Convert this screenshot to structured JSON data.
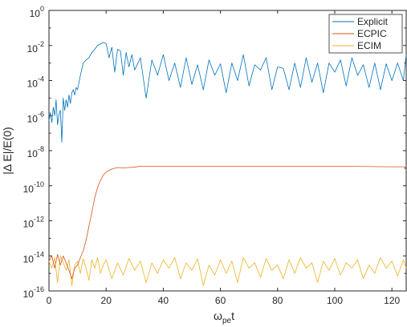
{
  "chart_data": {
    "type": "line",
    "xlabel": "ω_pe t",
    "xlabel_main": "ω",
    "xlabel_sub": "pe",
    "xlabel_tail": "t",
    "ylabel": "|Δ E|/E(0)",
    "xlim": [
      0,
      125
    ],
    "ylim": [
      1e-16,
      1
    ],
    "yscale": "log",
    "grid": false,
    "legend_position": "top-right",
    "x_ticks": [
      "0",
      "20",
      "40",
      "60",
      "80",
      "100",
      "120"
    ],
    "y_ticks": [
      {
        "mantissa": "10",
        "exp": "-16"
      },
      {
        "mantissa": "10",
        "exp": "-14"
      },
      {
        "mantissa": "10",
        "exp": "-12"
      },
      {
        "mantissa": "10",
        "exp": "-10"
      },
      {
        "mantissa": "10",
        "exp": "-8"
      },
      {
        "mantissa": "10",
        "exp": "-6"
      },
      {
        "mantissa": "10",
        "exp": "-4"
      },
      {
        "mantissa": "10",
        "exp": "-2"
      },
      {
        "mantissa": "10",
        "exp": "0"
      }
    ],
    "series": [
      {
        "name": "Explicit",
        "color": "#0072BD",
        "x": [
          0,
          0.5,
          1,
          1.5,
          2,
          2.5,
          3,
          3.5,
          4,
          4.5,
          5,
          5.5,
          6,
          6.5,
          7,
          7.5,
          8,
          8.5,
          9,
          9.5,
          10,
          11,
          12,
          13,
          14,
          15,
          16,
          17,
          18,
          19,
          20,
          21,
          22,
          23,
          24,
          25,
          26,
          27,
          28,
          29,
          30,
          32,
          34,
          36,
          38,
          40,
          42,
          44,
          46,
          48,
          50,
          52,
          54,
          56,
          58,
          60,
          62,
          64,
          66,
          68,
          70,
          72,
          74,
          76,
          78,
          80,
          82,
          84,
          86,
          88,
          90,
          92,
          94,
          96,
          98,
          100,
          102,
          104,
          106,
          108,
          110,
          112,
          114,
          116,
          118,
          120,
          122,
          124,
          125
        ],
        "y": [
          5e-07,
          1.5e-06,
          4e-07,
          3e-06,
          1e-06,
          8e-06,
          3e-07,
          1.2e-06,
          2e-06,
          3e-08,
          1e-05,
          2e-06,
          8e-06,
          3e-06,
          1.5e-05,
          5e-06,
          2e-05,
          3e-05,
          1.5e-05,
          4e-05,
          3e-05,
          0.0002,
          0.001,
          0.0015,
          0.002,
          0.004,
          0.006,
          0.01,
          0.012,
          0.015,
          0.013,
          0.002,
          0.008,
          0.0003,
          0.006,
          0.005,
          0.0002,
          0.004,
          0.0006,
          0.003,
          0.0004,
          0.002,
          1e-05,
          0.0015,
          0.0002,
          0.003,
          0.0001,
          0.001,
          4e-05,
          0.002,
          6e-05,
          0.0008,
          3e-05,
          0.0015,
          0.0002,
          0.0009,
          2e-05,
          0.001,
          0.0001,
          0.003,
          5e-05,
          0.0008,
          0.0004,
          0.002,
          3e-05,
          0.0006,
          0.0005,
          3e-05,
          0.001,
          4e-05,
          0.002,
          8e-05,
          0.001,
          2e-05,
          0.001,
          0.0003,
          0.0015,
          5e-05,
          0.002,
          0.0002,
          0.0008,
          4e-05,
          0.001,
          3e-05,
          0.0009,
          0.0001,
          0.001,
          0.0001,
          0.003
        ]
      },
      {
        "name": "ECPIC",
        "color": "#D95319",
        "x": [
          0,
          1,
          2,
          3,
          4,
          5,
          6,
          7,
          8,
          9,
          10,
          11,
          12,
          13,
          14,
          15,
          16,
          17,
          18,
          19,
          20,
          22,
          24,
          26,
          28,
          30,
          32,
          40,
          60,
          80,
          100,
          120,
          125
        ],
        "y": [
          5e-15,
          1e-14,
          2e-15,
          1.2e-14,
          3e-15,
          1e-14,
          4e-15,
          1.5e-15,
          5e-16,
          2e-15,
          3e-15,
          8e-15,
          2e-14,
          8e-14,
          5e-13,
          3e-12,
          2e-11,
          8e-11,
          2e-10,
          4e-10,
          6e-10,
          9e-10,
          1.1e-09,
          1.05e-09,
          1.1e-09,
          1.15e-09,
          1.3e-09,
          1.3e-09,
          1.3e-09,
          1.3e-09,
          1.3e-09,
          1.2e-09,
          1.2e-09
        ]
      },
      {
        "name": "ECIM",
        "color": "#EDB120",
        "x": [
          0,
          1,
          2,
          3,
          4,
          5,
          6,
          7,
          8,
          9,
          10,
          11,
          12,
          13,
          14,
          15,
          16,
          17,
          18,
          19,
          20,
          22,
          24,
          26,
          28,
          30,
          32,
          34,
          36,
          38,
          40,
          42,
          44,
          46,
          48,
          50,
          52,
          54,
          56,
          58,
          60,
          62,
          64,
          66,
          68,
          70,
          72,
          74,
          76,
          78,
          80,
          82,
          84,
          86,
          88,
          90,
          92,
          94,
          96,
          98,
          100,
          102,
          104,
          106,
          108,
          110,
          112,
          114,
          116,
          118,
          120,
          122,
          124,
          125
        ],
        "y": [
          5e-15,
          2e-15,
          8e-15,
          3e-16,
          1e-14,
          4e-15,
          1.5e-15,
          6e-15,
          2e-16,
          3e-15,
          5e-15,
          1e-15,
          7e-15,
          2e-15,
          4e-16,
          6e-15,
          2e-15,
          8e-15,
          1e-15,
          3e-15,
          6e-15,
          5e-16,
          4e-15,
          8e-16,
          7e-15,
          1.5e-15,
          5e-15,
          3e-16,
          4e-15,
          1e-15,
          6e-15,
          2e-15,
          8e-15,
          5e-16,
          4e-15,
          1.5e-15,
          7e-15,
          2e-16,
          3e-15,
          8e-16,
          6e-15,
          1e-15,
          5e-15,
          3e-16,
          8e-15,
          2e-15,
          4e-15,
          6e-16,
          7e-15,
          1.5e-15,
          3e-15,
          5e-16,
          6e-15,
          1e-15,
          8e-15,
          2e-15,
          4e-15,
          3e-16,
          5e-15,
          1.5e-15,
          7e-15,
          8e-16,
          4e-15,
          2e-15,
          6e-15,
          5e-16,
          3e-15,
          1e-15,
          8e-15,
          2e-15,
          5e-15,
          7e-16,
          6e-15,
          2e-15
        ]
      }
    ]
  }
}
